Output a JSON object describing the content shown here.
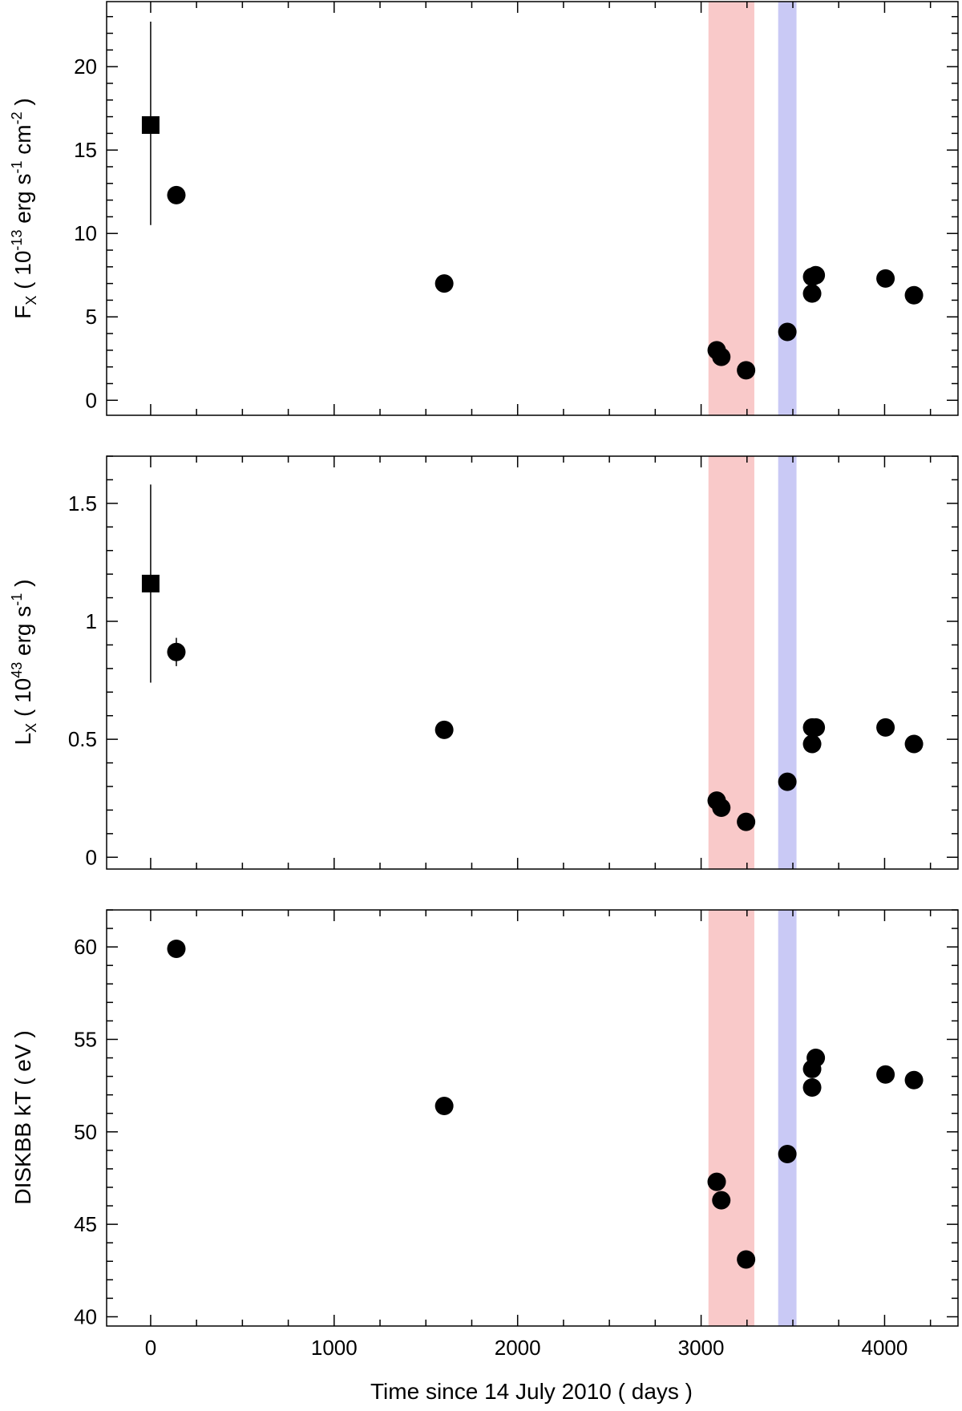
{
  "chart_data": [
    {
      "type": "scatter",
      "panel": "flux",
      "xlabel": "Time since 14 July 2010 ( days )",
      "ylabel": {
        "main": "F",
        "sub": "X",
        "pre": " ( 10",
        "exp1": "-13",
        "mid1": " erg s",
        "exp2": "-1",
        "mid2": " cm",
        "exp3": "-2",
        "post": " )"
      },
      "xlim": [
        -240,
        4400
      ],
      "ylim": [
        -0.9,
        23.9
      ],
      "x_ticks": [
        0,
        1000,
        2000,
        3000,
        4000
      ],
      "y_ticks": [
        0,
        5,
        10,
        15,
        20
      ],
      "shaded_regions": [
        {
          "x": [
            3040,
            3290
          ],
          "color": "#f9c9c9"
        },
        {
          "x": [
            3420,
            3520
          ],
          "color": "#c9c9f5"
        }
      ],
      "series": [
        {
          "marker": "square",
          "points": [
            {
              "x": 0,
              "y": 16.5,
              "err_lo": 10.5,
              "err_hi": 22.7
            }
          ]
        },
        {
          "marker": "circle",
          "points": [
            {
              "x": 140,
              "y": 12.3
            },
            {
              "x": 1600,
              "y": 7.0
            },
            {
              "x": 3085,
              "y": 3.0
            },
            {
              "x": 3110,
              "y": 2.6
            },
            {
              "x": 3245,
              "y": 1.8
            },
            {
              "x": 3470,
              "y": 4.1
            },
            {
              "x": 3605,
              "y": 6.4
            },
            {
              "x": 3605,
              "y": 7.4
            },
            {
              "x": 3625,
              "y": 7.5
            },
            {
              "x": 4005,
              "y": 7.3
            },
            {
              "x": 4160,
              "y": 6.3
            }
          ]
        }
      ]
    },
    {
      "type": "scatter",
      "panel": "luminosity",
      "xlabel": "Time since 14 July 2010 ( days )",
      "ylabel": {
        "main": "L",
        "sub": "X",
        "pre": " ( 10",
        "exp1": "43",
        "mid1": " erg s",
        "exp2": "-1",
        "mid2": "",
        "exp3": "",
        "post": " )"
      },
      "xlim": [
        -240,
        4400
      ],
      "ylim": [
        -0.05,
        1.7
      ],
      "x_ticks": [
        0,
        1000,
        2000,
        3000,
        4000
      ],
      "y_ticks": [
        0,
        0.5,
        1,
        1.5
      ],
      "shaded_regions": [
        {
          "x": [
            3040,
            3290
          ],
          "color": "#f9c9c9"
        },
        {
          "x": [
            3420,
            3520
          ],
          "color": "#c9c9f5"
        }
      ],
      "series": [
        {
          "marker": "square",
          "points": [
            {
              "x": 0,
              "y": 1.16,
              "err_lo": 0.74,
              "err_hi": 1.58
            }
          ]
        },
        {
          "marker": "circle",
          "points": [
            {
              "x": 140,
              "y": 0.87,
              "err_lo": 0.81,
              "err_hi": 0.93
            },
            {
              "x": 1600,
              "y": 0.54
            },
            {
              "x": 3085,
              "y": 0.24
            },
            {
              "x": 3110,
              "y": 0.21
            },
            {
              "x": 3245,
              "y": 0.15
            },
            {
              "x": 3470,
              "y": 0.32
            },
            {
              "x": 3605,
              "y": 0.48
            },
            {
              "x": 3605,
              "y": 0.55
            },
            {
              "x": 3625,
              "y": 0.55
            },
            {
              "x": 4005,
              "y": 0.55
            },
            {
              "x": 4160,
              "y": 0.48
            }
          ]
        }
      ]
    },
    {
      "type": "scatter",
      "panel": "temperature",
      "xlabel": "Time since 14 July 2010 ( days )",
      "ylabel": {
        "main": "DISKBB kT ( eV )",
        "sub": "",
        "pre": "",
        "exp1": "",
        "mid1": "",
        "exp2": "",
        "mid2": "",
        "exp3": "",
        "post": ""
      },
      "xlim": [
        -240,
        4400
      ],
      "ylim": [
        39.5,
        62.0
      ],
      "x_ticks": [
        0,
        1000,
        2000,
        3000,
        4000
      ],
      "y_ticks": [
        40,
        45,
        50,
        55,
        60
      ],
      "shaded_regions": [
        {
          "x": [
            3040,
            3290
          ],
          "color": "#f9c9c9"
        },
        {
          "x": [
            3420,
            3520
          ],
          "color": "#c9c9f5"
        }
      ],
      "series": [
        {
          "marker": "circle",
          "points": [
            {
              "x": 140,
              "y": 59.9
            },
            {
              "x": 1600,
              "y": 51.4
            },
            {
              "x": 3085,
              "y": 47.3
            },
            {
              "x": 3110,
              "y": 46.3
            },
            {
              "x": 3245,
              "y": 43.1
            },
            {
              "x": 3470,
              "y": 48.8
            },
            {
              "x": 3605,
              "y": 52.4
            },
            {
              "x": 3605,
              "y": 53.4
            },
            {
              "x": 3625,
              "y": 54.0
            },
            {
              "x": 4005,
              "y": 53.1
            },
            {
              "x": 4160,
              "y": 52.8
            }
          ]
        }
      ]
    }
  ]
}
